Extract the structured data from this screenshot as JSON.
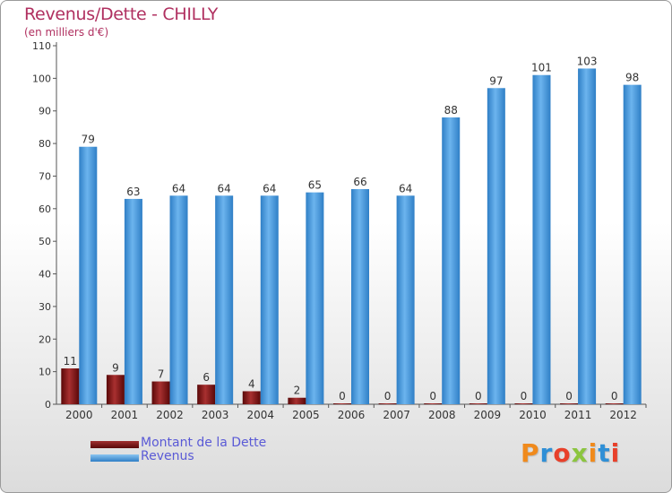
{
  "title": "Revenus/Dette - CHILLY",
  "subtitle": "(en milliers d'€)",
  "chart_data": {
    "type": "bar",
    "title": "Revenus/Dette - CHILLY",
    "subtitle": "(en milliers d'€)",
    "categories": [
      "2000",
      "2001",
      "2002",
      "2003",
      "2004",
      "2005",
      "2006",
      "2007",
      "2008",
      "2009",
      "2010",
      "2011",
      "2012"
    ],
    "series": [
      {
        "name": "Montant de la Dette",
        "values": [
          11,
          9,
          7,
          6,
          4,
          2,
          0,
          0,
          0,
          0,
          0,
          0,
          0
        ],
        "color": "#7a0c0c"
      },
      {
        "name": "Revenus",
        "values": [
          79,
          63,
          64,
          64,
          64,
          65,
          66,
          64,
          88,
          97,
          101,
          103,
          98
        ],
        "color": "#4f9fe0"
      }
    ],
    "ylim": [
      0,
      110
    ],
    "yticks": [
      0,
      10,
      20,
      30,
      40,
      50,
      60,
      70,
      80,
      90,
      100,
      110
    ],
    "grid": false,
    "data_labels": true,
    "legend_position": "bottom-left"
  },
  "legend": [
    {
      "label": "Montant de la Dette",
      "color": "#7a0c0c"
    },
    {
      "label": "Revenus",
      "color": "#4f9fe0"
    }
  ],
  "logo": {
    "text": "Proxiti",
    "colors": [
      "#f08a1c",
      "#2f8fd6",
      "#e8402a",
      "#8bc53f",
      "#f08a1c",
      "#2f8fd6",
      "#e8402a"
    ]
  }
}
